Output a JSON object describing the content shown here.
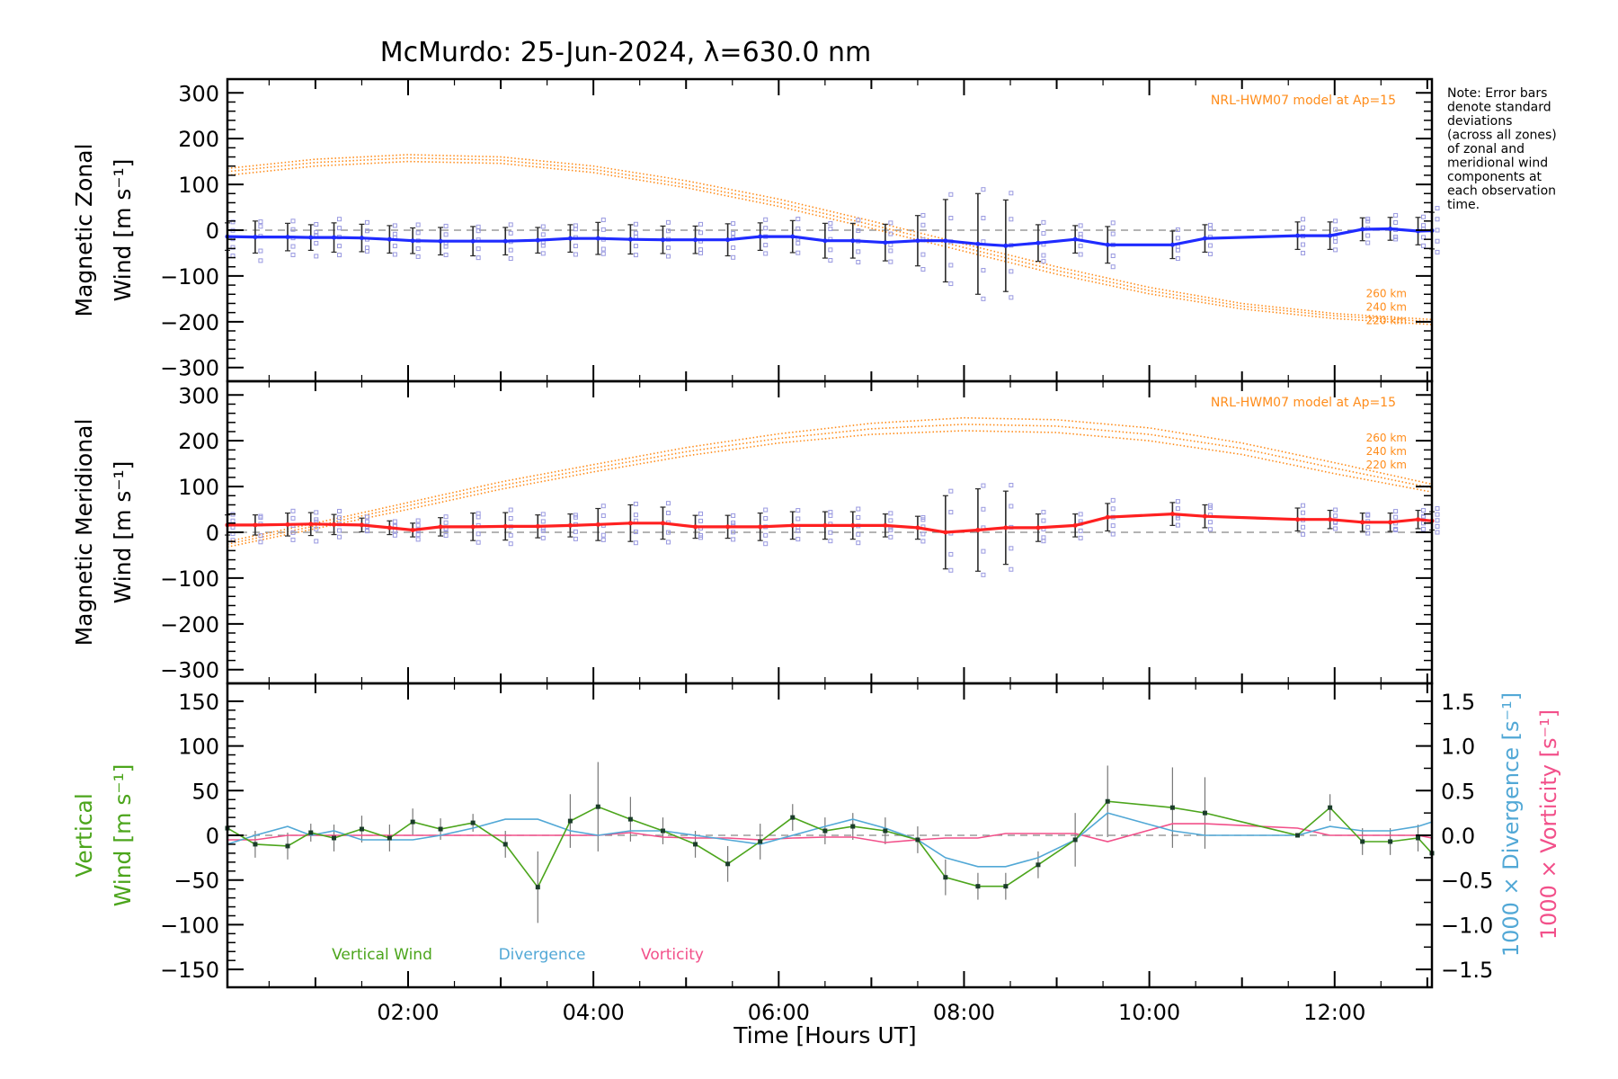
{
  "chart_data": {
    "title": "McMurdo: 25-Jun-2024, λ=630.0 nm",
    "xlabel": "Time [Hours UT]",
    "x_ticks": [
      "02:00",
      "04:00",
      "06:00",
      "08:00",
      "10:00",
      "12:00"
    ],
    "x_range_hours": [
      0.05,
      13.05
    ],
    "note_lines": [
      "Note: Error bars",
      "denote standard",
      "deviations",
      "(across all zones)",
      "of zonal and",
      "meridional wind",
      "components at",
      "each observation",
      "time."
    ],
    "colors": {
      "model": "#ff8c1a",
      "zonal": "#1f2bff",
      "meridional": "#ff2020",
      "vertical": "#4ca51c",
      "divergence": "#52a8d6",
      "vorticity": "#f2508a",
      "samples": "#9999e0",
      "grid": "#888888"
    },
    "panels": [
      {
        "type": "line",
        "ylabel_lines": [
          "Magnetic Zonal",
          "Wind [m s⁻¹]"
        ],
        "ylim": [
          -330,
          330
        ],
        "y_ticks": [
          300,
          200,
          100,
          0,
          -100,
          -200,
          -300
        ],
        "model_label": "NRL-HWM07 model at Ap=15",
        "model_altitudes": [
          "260 km",
          "240 km",
          "220 km"
        ],
        "model_curves": [
          {
            "name": "260 km",
            "x": [
              0.05,
              1,
              2,
              3,
              4,
              5,
              6,
              7,
              8,
              9,
              10,
              11,
              12,
              13.05
            ],
            "y": [
              135,
              155,
              165,
              160,
              140,
              108,
              68,
              20,
              -30,
              -80,
              -125,
              -160,
              -182,
              -195
            ]
          },
          {
            "name": "240 km",
            "x": [
              0.05,
              1,
              2,
              3,
              4,
              5,
              6,
              7,
              8,
              9,
              10,
              11,
              12,
              13.05
            ],
            "y": [
              128,
              148,
              158,
              153,
              133,
              100,
              60,
              12,
              -38,
              -88,
              -132,
              -166,
              -187,
              -200
            ]
          },
          {
            "name": "220 km",
            "x": [
              0.05,
              1,
              2,
              3,
              4,
              5,
              6,
              7,
              8,
              9,
              10,
              11,
              12,
              13.05
            ],
            "y": [
              120,
              140,
              150,
              146,
              126,
              93,
              52,
              4,
              -46,
              -96,
              -139,
              -172,
              -193,
              -206
            ]
          }
        ],
        "series": [
          {
            "x": [
              0.05,
              0.35,
              0.7,
              0.95,
              1.2,
              1.5,
              1.8,
              2.05,
              2.35,
              2.7,
              3.05,
              3.4,
              3.75,
              4.05,
              4.4,
              4.75,
              5.1,
              5.45,
              5.8,
              6.15,
              6.5,
              6.8,
              7.15,
              7.5,
              7.8,
              8.15,
              8.45,
              8.8,
              9.2,
              9.55,
              10.25,
              10.6,
              11.6,
              11.95,
              12.3,
              12.6,
              12.9,
              13.05
            ],
            "y": [
              -14,
              -15,
              -15,
              -16,
              -16,
              -17,
              -20,
              -23,
              -24,
              -24,
              -24,
              -22,
              -18,
              -18,
              -20,
              -21,
              -21,
              -21,
              -14,
              -14,
              -23,
              -23,
              -27,
              -23,
              -23,
              -30,
              -34,
              -28,
              -20,
              -32,
              -32,
              -18,
              -12,
              -12,
              2,
              3,
              -2,
              -1
            ],
            "error": [
              30,
              35,
              30,
              28,
              32,
              30,
              30,
              28,
              30,
              32,
              30,
              28,
              30,
              35,
              32,
              30,
              30,
              35,
              30,
              35,
              38,
              38,
              40,
              55,
              90,
              110,
              100,
              40,
              30,
              40,
              30,
              30,
              30,
              30,
              25,
              25,
              30,
              40
            ]
          }
        ]
      },
      {
        "type": "line",
        "ylabel_lines": [
          "Magnetic Meridional",
          "Wind [m s⁻¹]"
        ],
        "ylim": [
          -330,
          330
        ],
        "y_ticks": [
          300,
          200,
          100,
          0,
          -100,
          -200,
          -300
        ],
        "model_label": "NRL-HWM07 model at Ap=15",
        "model_altitudes": [
          "260 km",
          "240 km",
          "220 km"
        ],
        "model_curves": [
          {
            "name": "260 km",
            "x": [
              0.05,
              1,
              2,
              3,
              4,
              5,
              6,
              7,
              8,
              9,
              10,
              11,
              12,
              13.05
            ],
            "y": [
              -20,
              20,
              65,
              110,
              148,
              185,
              215,
              238,
              250,
              246,
              228,
              195,
              152,
              105
            ]
          },
          {
            "name": "240 km",
            "x": [
              0.05,
              1,
              2,
              3,
              4,
              5,
              6,
              7,
              8,
              9,
              10,
              11,
              12,
              13.05
            ],
            "y": [
              -26,
              14,
              58,
              102,
              140,
              176,
              205,
              226,
              236,
              232,
              214,
              183,
              140,
              97
            ]
          },
          {
            "name": "220 km",
            "x": [
              0.05,
              1,
              2,
              3,
              4,
              5,
              6,
              7,
              8,
              9,
              10,
              11,
              12,
              13.05
            ],
            "y": [
              -32,
              8,
              50,
              94,
              132,
              167,
              195,
              214,
              222,
              218,
              200,
              170,
              128,
              88
            ]
          }
        ],
        "series": [
          {
            "x": [
              0.05,
              0.35,
              0.7,
              0.95,
              1.2,
              1.5,
              1.8,
              2.05,
              2.35,
              2.7,
              3.05,
              3.4,
              3.75,
              4.05,
              4.4,
              4.75,
              5.1,
              5.45,
              5.8,
              6.15,
              6.5,
              6.8,
              7.15,
              7.5,
              7.8,
              8.15,
              8.45,
              8.8,
              9.2,
              9.55,
              10.25,
              10.6,
              11.6,
              11.95,
              12.3,
              12.6,
              12.9,
              13.05
            ],
            "y": [
              16,
              16,
              17,
              18,
              17,
              16,
              10,
              5,
              12,
              12,
              13,
              13,
              15,
              17,
              20,
              20,
              12,
              12,
              12,
              15,
              15,
              15,
              15,
              10,
              0,
              5,
              10,
              10,
              15,
              33,
              40,
              35,
              28,
              28,
              22,
              22,
              28,
              25
            ],
            "error": [
              22,
              22,
              25,
              25,
              22,
              15,
              15,
              15,
              20,
              30,
              30,
              25,
              25,
              35,
              40,
              35,
              25,
              25,
              30,
              30,
              30,
              30,
              25,
              25,
              80,
              90,
              80,
              30,
              25,
              30,
              25,
              25,
              25,
              20,
              20,
              20,
              20,
              20
            ]
          }
        ]
      },
      {
        "type": "line",
        "ylabel_left_lines": [
          "Vertical",
          "Wind [m s⁻¹]"
        ],
        "ylabel_right": [
          "1000 × Divergence [s⁻¹]",
          "1000 × Vorticity [s⁻¹]"
        ],
        "ylim": [
          -170,
          170
        ],
        "y_ticks": [
          150,
          100,
          50,
          0,
          -50,
          -100,
          -150
        ],
        "y2lim": [
          -1.7,
          1.7
        ],
        "y2_ticks": [
          "1.5",
          "1.0",
          "0.5",
          "0.0",
          "−0.5",
          "−1.0",
          "−1.5"
        ],
        "legend": [
          "Vertical Wind",
          "Divergence",
          "Vorticity"
        ],
        "series": [
          {
            "name": "Vertical Wind",
            "x": [
              0.05,
              0.35,
              0.7,
              0.95,
              1.2,
              1.5,
              1.8,
              2.05,
              2.35,
              2.7,
              3.05,
              3.4,
              3.75,
              4.05,
              4.4,
              4.75,
              5.1,
              5.45,
              5.8,
              6.15,
              6.5,
              6.8,
              7.15,
              7.5,
              7.8,
              8.15,
              8.45,
              8.8,
              9.2,
              9.55,
              10.25,
              10.6,
              11.6,
              11.95,
              12.3,
              12.6,
              12.9,
              13.05
            ],
            "y": [
              8,
              -10,
              -12,
              3,
              -3,
              7,
              -3,
              15,
              7,
              14,
              -10,
              -58,
              16,
              32,
              18,
              5,
              -10,
              -32,
              -7,
              20,
              5,
              10,
              5,
              -5,
              -47,
              -57,
              -57,
              -33,
              -5,
              38,
              31,
              25,
              0,
              31,
              -7,
              -7,
              -3,
              -20
            ],
            "error": [
              15,
              15,
              15,
              10,
              15,
              15,
              15,
              15,
              12,
              10,
              15,
              40,
              30,
              50,
              25,
              15,
              15,
              20,
              20,
              15,
              15,
              15,
              15,
              15,
              20,
              15,
              15,
              15,
              30,
              40,
              45,
              40,
              0,
              15,
              15,
              15,
              15,
              15
            ]
          },
          {
            "name": "Divergence",
            "x": [
              0.05,
              0.35,
              0.7,
              0.95,
              1.2,
              1.5,
              1.8,
              2.05,
              2.35,
              2.7,
              3.05,
              3.4,
              3.75,
              4.05,
              4.4,
              4.75,
              5.1,
              5.45,
              5.8,
              6.15,
              6.5,
              6.8,
              7.15,
              7.5,
              7.8,
              8.15,
              8.45,
              8.8,
              9.2,
              9.55,
              10.25,
              10.6,
              11.6,
              11.95,
              12.3,
              12.6,
              12.9,
              13.05
            ],
            "y": [
              -0.1,
              0.0,
              0.1,
              0.0,
              0.05,
              -0.05,
              -0.05,
              -0.05,
              0.0,
              0.08,
              0.18,
              0.18,
              0.05,
              0.0,
              0.05,
              0.05,
              0.0,
              -0.05,
              -0.1,
              0.0,
              0.1,
              0.18,
              0.08,
              -0.05,
              -0.25,
              -0.35,
              -0.35,
              -0.25,
              -0.05,
              0.25,
              0.05,
              0.0,
              0.0,
              0.1,
              0.05,
              0.05,
              0.1,
              0.15
            ]
          },
          {
            "name": "Vorticity",
            "x": [
              0.05,
              0.35,
              0.7,
              0.95,
              1.2,
              1.5,
              1.8,
              2.05,
              2.35,
              2.7,
              3.05,
              3.4,
              3.75,
              4.05,
              4.4,
              4.75,
              5.1,
              5.45,
              5.8,
              6.15,
              6.5,
              6.8,
              7.15,
              7.5,
              7.8,
              8.15,
              8.45,
              8.8,
              9.2,
              9.55,
              10.25,
              10.6,
              11.6,
              11.95,
              12.3,
              12.6,
              12.9,
              13.05
            ],
            "y": [
              -0.05,
              -0.05,
              0.0,
              0.0,
              0.0,
              0.0,
              0.0,
              0.0,
              0.0,
              0.0,
              0.0,
              0.0,
              0.0,
              0.0,
              0.03,
              -0.02,
              -0.03,
              -0.03,
              -0.05,
              -0.03,
              -0.02,
              -0.02,
              -0.08,
              -0.05,
              -0.03,
              -0.03,
              0.02,
              0.02,
              0.02,
              -0.07,
              0.13,
              0.13,
              0.08,
              0.0,
              0.0,
              0.0,
              0.0,
              -0.03
            ]
          }
        ]
      }
    ]
  }
}
